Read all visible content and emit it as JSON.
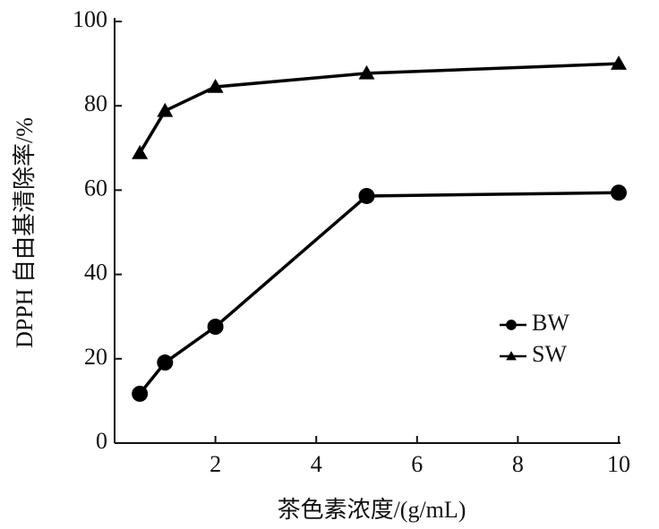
{
  "chart_data": {
    "type": "line",
    "xlabel": "茶色素浓度/(g/mL)",
    "ylabel": "DPPH 自由基清除率/%",
    "x": [
      0.5,
      1,
      2,
      5,
      10
    ],
    "series": [
      {
        "name": "BW",
        "color": "#000000",
        "marker": "circle",
        "values": [
          11.7,
          19.1,
          27.6,
          58.6,
          59.4
        ]
      },
      {
        "name": "SW",
        "color": "#000000",
        "marker": "triangle",
        "values": [
          68.8,
          78.8,
          84.5,
          87.7,
          90.0
        ]
      }
    ],
    "xlim": [
      0,
      10
    ],
    "xticks": [
      2,
      4,
      6,
      8,
      10
    ],
    "ylim": [
      0,
      100
    ],
    "yticks": [
      0,
      20,
      40,
      60,
      80,
      100
    ],
    "grid": false
  }
}
